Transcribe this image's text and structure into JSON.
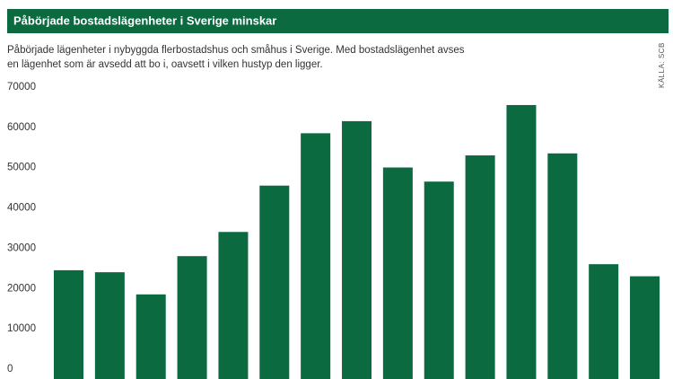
{
  "chart_data": {
    "type": "bar",
    "title": "Påbörjade bostadslägenheter i Sverige minskar",
    "subtitle": [
      "Påbörjade lägenheter i nybyggda flerbostadshus och småhus i Sverige. Med bostadslägenhet avses",
      "en lägenhet som är avsedd att bo i, oavsett i vilken hustyp den ligger."
    ],
    "source": "KÄLLA: SCB",
    "categories": [
      null,
      null,
      null,
      null,
      null,
      null,
      null,
      null,
      null,
      null,
      null,
      null,
      null,
      null,
      null
    ],
    "values": [
      27000,
      26500,
      21000,
      30500,
      36500,
      48000,
      61000,
      64000,
      52500,
      49000,
      55500,
      68000,
      56000,
      28500,
      25500
    ],
    "color": "#0b6a40",
    "ylim": [
      0,
      70000
    ],
    "yticks": [
      0,
      10000,
      20000,
      30000,
      40000,
      50000,
      60000,
      70000
    ],
    "grid": false
  }
}
